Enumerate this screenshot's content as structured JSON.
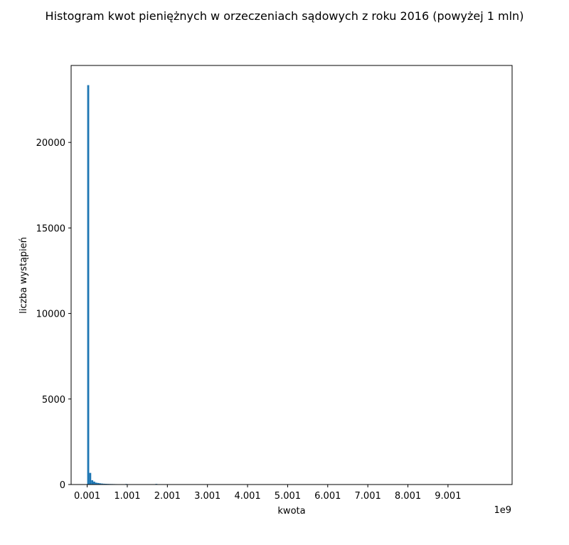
{
  "chart_data": {
    "type": "bar",
    "title": "Histogram kwot pieniężnych w orzeczeniach sądowych z roku 2016 (powyżej 1 mln)",
    "xlabel": "kwota",
    "ylabel": "liczba wystąpień",
    "x_offset_label": "1e9",
    "x_ticks": [
      {
        "value": 0.001,
        "label": "0.001"
      },
      {
        "value": 1.001,
        "label": "1.001"
      },
      {
        "value": 2.001,
        "label": "2.001"
      },
      {
        "value": 3.001,
        "label": "3.001"
      },
      {
        "value": 4.001,
        "label": "4.001"
      },
      {
        "value": 5.001,
        "label": "5.001"
      },
      {
        "value": 6.001,
        "label": "6.001"
      },
      {
        "value": 7.001,
        "label": "7.001"
      },
      {
        "value": 8.001,
        "label": "8.001"
      },
      {
        "value": 9.001,
        "label": "9.001"
      }
    ],
    "y_ticks": [
      {
        "value": 0,
        "label": "0"
      },
      {
        "value": 5000,
        "label": "5000"
      },
      {
        "value": 10000,
        "label": "10000"
      },
      {
        "value": 15000,
        "label": "15000"
      },
      {
        "value": 20000,
        "label": "20000"
      }
    ],
    "xlim": [
      -0.4,
      10.6
    ],
    "ylim": [
      0,
      24500
    ],
    "grid": false,
    "bar_color": "#1f77b4",
    "bins": [
      {
        "x0": 0.001,
        "x1": 0.051,
        "value": 23350
      },
      {
        "x0": 0.051,
        "x1": 0.101,
        "value": 680
      },
      {
        "x0": 0.101,
        "x1": 0.151,
        "value": 250
      },
      {
        "x0": 0.151,
        "x1": 0.201,
        "value": 170
      },
      {
        "x0": 0.201,
        "x1": 0.251,
        "value": 110
      },
      {
        "x0": 0.251,
        "x1": 0.301,
        "value": 90
      },
      {
        "x0": 0.301,
        "x1": 0.351,
        "value": 70
      },
      {
        "x0": 0.351,
        "x1": 0.401,
        "value": 55
      },
      {
        "x0": 0.401,
        "x1": 0.451,
        "value": 45
      },
      {
        "x0": 0.451,
        "x1": 0.501,
        "value": 40
      },
      {
        "x0": 0.501,
        "x1": 0.551,
        "value": 35
      },
      {
        "x0": 0.551,
        "x1": 0.601,
        "value": 30
      },
      {
        "x0": 0.601,
        "x1": 0.651,
        "value": 28
      },
      {
        "x0": 0.651,
        "x1": 0.701,
        "value": 25
      },
      {
        "x0": 0.701,
        "x1": 0.751,
        "value": 22
      },
      {
        "x0": 0.751,
        "x1": 0.801,
        "value": 20
      },
      {
        "x0": 0.801,
        "x1": 0.851,
        "value": 18
      },
      {
        "x0": 0.851,
        "x1": 0.901,
        "value": 15
      },
      {
        "x0": 0.901,
        "x1": 0.951,
        "value": 14
      },
      {
        "x0": 0.951,
        "x1": 1.001,
        "value": 30
      },
      {
        "x0": 1.001,
        "x1": 1.051,
        "value": 12
      },
      {
        "x0": 1.051,
        "x1": 1.101,
        "value": 10
      },
      {
        "x0": 1.101,
        "x1": 1.151,
        "value": 9
      },
      {
        "x0": 1.151,
        "x1": 1.201,
        "value": 8
      },
      {
        "x0": 1.201,
        "x1": 1.251,
        "value": 7
      },
      {
        "x0": 1.251,
        "x1": 1.301,
        "value": 7
      },
      {
        "x0": 1.301,
        "x1": 1.351,
        "value": 6
      },
      {
        "x0": 1.351,
        "x1": 1.401,
        "value": 6
      },
      {
        "x0": 1.401,
        "x1": 1.451,
        "value": 5
      },
      {
        "x0": 1.451,
        "x1": 1.501,
        "value": 5
      },
      {
        "x0": 1.501,
        "x1": 1.551,
        "value": 5
      },
      {
        "x0": 1.551,
        "x1": 1.601,
        "value": 4
      },
      {
        "x0": 1.601,
        "x1": 1.651,
        "value": 4
      },
      {
        "x0": 1.651,
        "x1": 1.701,
        "value": 4
      },
      {
        "x0": 1.701,
        "x1": 1.751,
        "value": 35
      },
      {
        "x0": 1.751,
        "x1": 1.801,
        "value": 4
      },
      {
        "x0": 1.801,
        "x1": 1.851,
        "value": 3
      },
      {
        "x0": 1.851,
        "x1": 1.901,
        "value": 3
      },
      {
        "x0": 1.901,
        "x1": 1.951,
        "value": 3
      },
      {
        "x0": 1.951,
        "x1": 2.001,
        "value": 20
      }
    ]
  }
}
